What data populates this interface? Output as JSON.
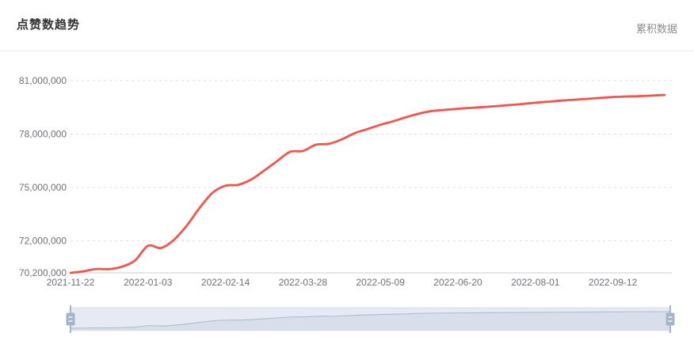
{
  "header": {
    "title": "点赞数趋势",
    "mode_label": "累积数据"
  },
  "colors": {
    "series": "#f4544c",
    "title": "#333333",
    "mode_label": "#8a8a8a",
    "divider": "#ececec",
    "axis_label": "#6e7079",
    "grid_line": "#dcdfe6",
    "axis_line": "#cccccc",
    "slider_track": "#e6ebf3",
    "slider_track_border": "#ccd4e2",
    "slider_area_fill": "#d8dfeb",
    "slider_line": "#b4c0d2",
    "slider_handle": "#a6b4c9",
    "slider_handle_stripe": "#eef1f6"
  },
  "chart_data": {
    "type": "line",
    "title": "点赞数趋势",
    "legend": [
      "累积数据"
    ],
    "legend_position": "top-right",
    "smooth": true,
    "grid": "horizontal-dashed",
    "xlabel": "",
    "ylabel": "",
    "ylim": [
      70200000,
      81000000
    ],
    "y_ticks": [
      {
        "label": "70,200,000",
        "value": 70200000
      },
      {
        "label": "72,000,000",
        "value": 72000000
      },
      {
        "label": "75,000,000",
        "value": 75000000
      },
      {
        "label": "78,000,000",
        "value": 78000000
      },
      {
        "label": "81,000,000",
        "value": 81000000
      }
    ],
    "x_ticks": [
      "2021-11-22",
      "2022-01-03",
      "2022-02-14",
      "2022-03-28",
      "2022-05-09",
      "2022-06-20",
      "2022-08-01",
      "2022-09-12"
    ],
    "x": [
      "2021-11-22",
      "2021-11-29",
      "2021-12-06",
      "2021-12-13",
      "2021-12-20",
      "2021-12-27",
      "2022-01-03",
      "2022-01-10",
      "2022-01-17",
      "2022-01-24",
      "2022-01-31",
      "2022-02-07",
      "2022-02-14",
      "2022-02-21",
      "2022-02-28",
      "2022-03-07",
      "2022-03-14",
      "2022-03-21",
      "2022-03-28",
      "2022-04-04",
      "2022-04-11",
      "2022-04-18",
      "2022-04-25",
      "2022-05-02",
      "2022-05-09",
      "2022-05-16",
      "2022-05-23",
      "2022-05-30",
      "2022-06-06",
      "2022-06-13",
      "2022-06-20",
      "2022-06-27",
      "2022-07-04",
      "2022-07-11",
      "2022-07-18",
      "2022-07-25",
      "2022-08-01",
      "2022-08-08",
      "2022-08-15",
      "2022-08-22",
      "2022-08-29",
      "2022-09-05",
      "2022-09-12",
      "2022-09-19",
      "2022-09-26",
      "2022-10-03",
      "2022-10-10"
    ],
    "values": [
      70200000,
      70290000,
      70420000,
      70410000,
      70550000,
      70900000,
      71720000,
      71600000,
      72050000,
      72850000,
      73850000,
      74700000,
      75100000,
      75150000,
      75450000,
      75950000,
      76480000,
      77000000,
      77050000,
      77400000,
      77450000,
      77700000,
      78050000,
      78280000,
      78520000,
      78720000,
      78950000,
      79150000,
      79300000,
      79360000,
      79420000,
      79470000,
      79520000,
      79570000,
      79630000,
      79690000,
      79760000,
      79820000,
      79880000,
      79930000,
      79980000,
      80030000,
      80080000,
      80110000,
      80130000,
      80160000,
      80200000
    ],
    "datazoom": {
      "range_start": "2021-11-22",
      "range_end": "2022-10-10",
      "start_pct": 0,
      "end_pct": 100
    }
  }
}
